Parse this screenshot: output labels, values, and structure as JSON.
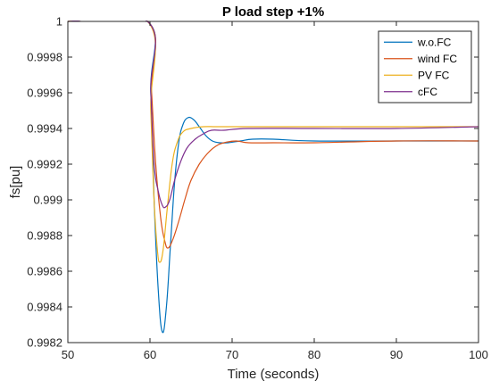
{
  "chart_data": {
    "type": "line",
    "title": "P load step +1%",
    "xlabel": "Time (seconds)",
    "ylabel": "fs[pu]",
    "xlim": [
      50,
      100
    ],
    "ylim": [
      0.9982,
      1.0
    ],
    "x_ticks": [
      "50",
      "60",
      "70",
      "80",
      "90",
      "100"
    ],
    "y_ticks": [
      "0.9982",
      "0.9984",
      "0.9986",
      "0.9988",
      "0.999",
      "0.9992",
      "0.9994",
      "0.9996",
      "0.9998",
      "1"
    ],
    "grid": false,
    "legend_position": "top-right",
    "series": [
      {
        "name": "w.o.FC",
        "color": "#0072BD",
        "points": [
          [
            50,
            1.0
          ],
          [
            59.7,
            1.0
          ],
          [
            60.1,
            0.9996
          ],
          [
            60.5,
            0.999
          ],
          [
            61.0,
            0.9985
          ],
          [
            61.5,
            0.99826
          ],
          [
            62.0,
            0.9984
          ],
          [
            62.5,
            0.99875
          ],
          [
            63.0,
            0.9991
          ],
          [
            63.5,
            0.99932
          ],
          [
            64.0,
            0.99942
          ],
          [
            64.6,
            0.99946
          ],
          [
            65.3,
            0.99945
          ],
          [
            66.0,
            0.99941
          ],
          [
            66.8,
            0.99936
          ],
          [
            67.6,
            0.99933
          ],
          [
            68.5,
            0.99932
          ],
          [
            69.5,
            0.99932
          ],
          [
            71.0,
            0.99933
          ],
          [
            72.5,
            0.99934
          ],
          [
            75.0,
            0.99934
          ],
          [
            80.0,
            0.99933
          ],
          [
            90.0,
            0.99933
          ],
          [
            100.0,
            0.99933
          ]
        ]
      },
      {
        "name": "wind FC",
        "color": "#D95319",
        "points": [
          [
            50,
            1.0
          ],
          [
            59.7,
            1.0
          ],
          [
            60.2,
            0.9996
          ],
          [
            60.7,
            0.9992
          ],
          [
            61.3,
            0.9989
          ],
          [
            61.8,
            0.99877
          ],
          [
            62.2,
            0.99873
          ],
          [
            62.8,
            0.99878
          ],
          [
            63.5,
            0.99888
          ],
          [
            64.3,
            0.99901
          ],
          [
            65.0,
            0.99911
          ],
          [
            66.0,
            0.9992
          ],
          [
            67.0,
            0.99926
          ],
          [
            68.0,
            0.9993
          ],
          [
            69.0,
            0.99932
          ],
          [
            70.5,
            0.99933
          ],
          [
            72.0,
            0.99932
          ],
          [
            75.0,
            0.99932
          ],
          [
            80.0,
            0.99932
          ],
          [
            90.0,
            0.99933
          ],
          [
            100.0,
            0.99933
          ]
        ]
      },
      {
        "name": "PV FC",
        "color": "#EDB120",
        "points": [
          [
            50,
            1.0
          ],
          [
            59.7,
            1.0
          ],
          [
            60.1,
            0.9995
          ],
          [
            60.5,
            0.999
          ],
          [
            60.9,
            0.99872
          ],
          [
            61.2,
            0.99865
          ],
          [
            61.6,
            0.99872
          ],
          [
            62.1,
            0.99895
          ],
          [
            62.7,
            0.9992
          ],
          [
            63.3,
            0.99932
          ],
          [
            64.0,
            0.99938
          ],
          [
            65.0,
            0.9994
          ],
          [
            66.5,
            0.99941
          ],
          [
            68.0,
            0.99941
          ],
          [
            70.0,
            0.99941
          ],
          [
            80.0,
            0.99941
          ],
          [
            90.0,
            0.99941
          ],
          [
            100.0,
            0.99941
          ]
        ]
      },
      {
        "name": "cFC",
        "color": "#7E2F8E",
        "points": [
          [
            50,
            1.0
          ],
          [
            59.7,
            1.0
          ],
          [
            60.1,
            0.9996
          ],
          [
            60.5,
            0.9992
          ],
          [
            61.0,
            0.99905
          ],
          [
            61.5,
            0.99897
          ],
          [
            61.9,
            0.99896
          ],
          [
            62.4,
            0.999
          ],
          [
            63.0,
            0.99911
          ],
          [
            63.7,
            0.99921
          ],
          [
            64.5,
            0.99929
          ],
          [
            65.5,
            0.99934
          ],
          [
            66.5,
            0.99937
          ],
          [
            67.5,
            0.99939
          ],
          [
            69.0,
            0.99939
          ],
          [
            72.0,
            0.9994
          ],
          [
            80.0,
            0.9994
          ],
          [
            90.0,
            0.9994
          ],
          [
            100.0,
            0.99941
          ]
        ]
      }
    ]
  }
}
